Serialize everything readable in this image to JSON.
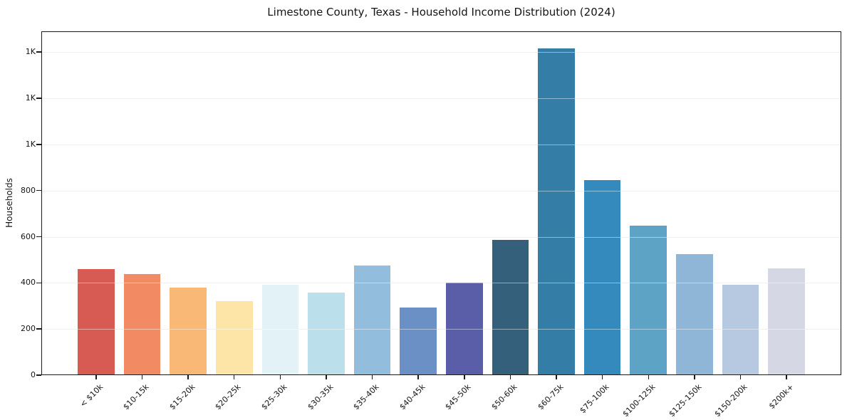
{
  "chart_data": {
    "type": "bar",
    "title": "Limestone County, Texas - Household Income Distribution (2024)",
    "xlabel": "",
    "ylabel": "Households",
    "categories": [
      "< $10k",
      "$10-15k",
      "$15-20k",
      "$20-25k",
      "$25-30k",
      "$30-35k",
      "$35-40k",
      "$40-45k",
      "$45-50k",
      "$50-60k",
      "$60-75k",
      "$75-100k",
      "$100-125k",
      "$125-150k",
      "$150-200k",
      "$200k+"
    ],
    "values": [
      460,
      438,
      380,
      320,
      392,
      358,
      474,
      294,
      402,
      587,
      1415,
      846,
      649,
      525,
      393,
      463
    ],
    "bar_colors": [
      "#d75b52",
      "#f28a64",
      "#fab877",
      "#fce5a6",
      "#e3f2f7",
      "#bcdfec",
      "#92bddc",
      "#6b90c6",
      "#5a5ea8",
      "#35607b",
      "#337da6",
      "#348abd",
      "#5ca3c6",
      "#8fb6d7",
      "#b7c8e1",
      "#d5d7e5"
    ],
    "yticks": [
      {
        "value": 0,
        "label": "0"
      },
      {
        "value": 200,
        "label": "200"
      },
      {
        "value": 400,
        "label": "400"
      },
      {
        "value": 600,
        "label": "600"
      },
      {
        "value": 800,
        "label": "800"
      },
      {
        "value": 1000,
        "label": "1K"
      },
      {
        "value": 1200,
        "label": "1K"
      },
      {
        "value": 1400,
        "label": "1K"
      }
    ],
    "ylim": [
      0,
      1490
    ],
    "xlim": [
      -1.19,
      16.19
    ],
    "bar_width": 0.8,
    "grid": "horizontal",
    "legend": "none",
    "background_color": "#ffffff",
    "axis_color": "#1b1b1b",
    "grid_color": "#e4e4e4"
  }
}
